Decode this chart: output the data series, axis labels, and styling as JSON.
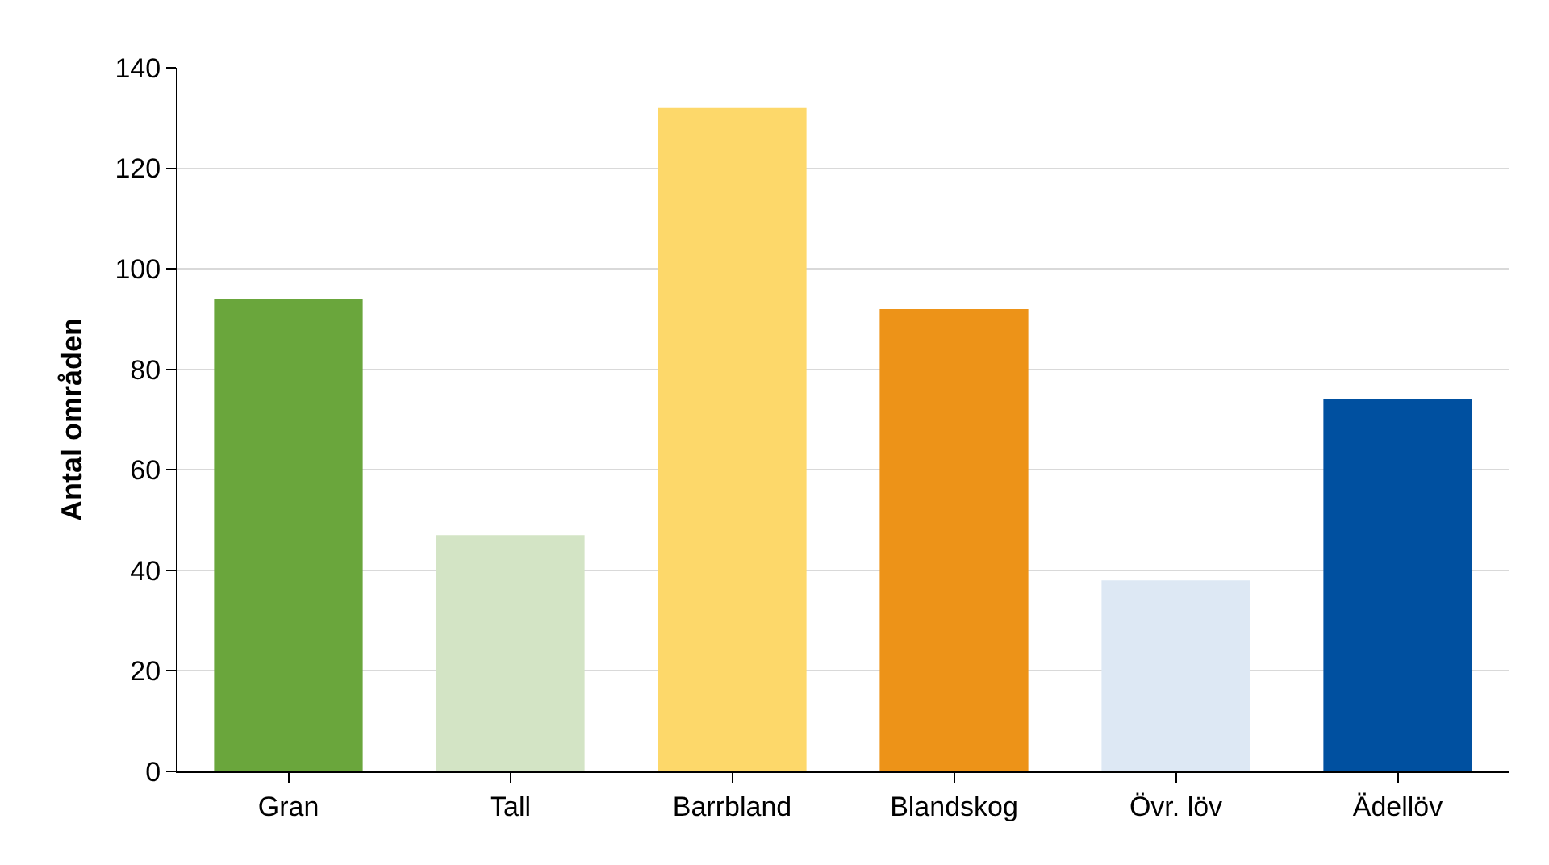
{
  "chart_data": {
    "type": "bar",
    "ylabel": "Antal områden",
    "categories": [
      "Gran",
      "Tall",
      "Barrbland",
      "Blandskog",
      "Övr. löv",
      "Ädellöv"
    ],
    "values": [
      94,
      47,
      132,
      92,
      38,
      74
    ],
    "colors": [
      "#6aa63c",
      "#d3e4c5",
      "#fdd86a",
      "#ed9318",
      "#dde8f4",
      "#0050a0"
    ],
    "ylim": [
      0,
      140
    ],
    "yticks": [
      0,
      20,
      40,
      60,
      80,
      100,
      120,
      140
    ],
    "grid": "y"
  }
}
